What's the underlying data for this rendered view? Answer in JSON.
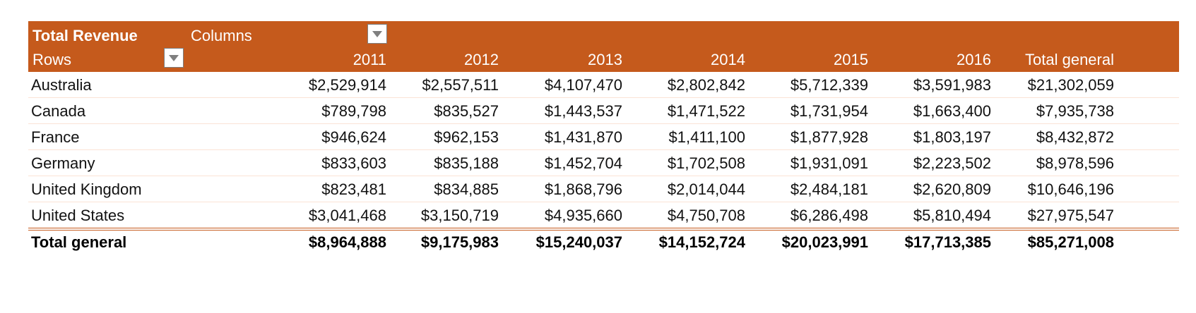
{
  "pivot": {
    "title": "Total Revenue",
    "columns_label": "Columns",
    "rows_label": "Rows",
    "colors": {
      "header_bg": "#c55a1c",
      "header_text": "#ffffff",
      "row_divider": "#fbe3d6",
      "total_border": "#c55a1c"
    },
    "column_headers": [
      "2011",
      "2012",
      "2013",
      "2014",
      "2015",
      "2016",
      "Total general"
    ],
    "rows": [
      {
        "label": "Australia",
        "values": [
          "$2,529,914",
          "$2,557,511",
          "$4,107,470",
          "$2,802,842",
          "$5,712,339",
          "$3,591,983",
          "$21,302,059"
        ]
      },
      {
        "label": "Canada",
        "values": [
          "$789,798",
          "$835,527",
          "$1,443,537",
          "$1,471,522",
          "$1,731,954",
          "$1,663,400",
          "$7,935,738"
        ]
      },
      {
        "label": "France",
        "values": [
          "$946,624",
          "$962,153",
          "$1,431,870",
          "$1,411,100",
          "$1,877,928",
          "$1,803,197",
          "$8,432,872"
        ]
      },
      {
        "label": "Germany",
        "values": [
          "$833,603",
          "$835,188",
          "$1,452,704",
          "$1,702,508",
          "$1,931,091",
          "$2,223,502",
          "$8,978,596"
        ]
      },
      {
        "label": "United Kingdom",
        "values": [
          "$823,481",
          "$834,885",
          "$1,868,796",
          "$2,014,044",
          "$2,484,181",
          "$2,620,809",
          "$10,646,196"
        ]
      },
      {
        "label": "United States",
        "values": [
          "$3,041,468",
          "$3,150,719",
          "$4,935,660",
          "$4,750,708",
          "$6,286,498",
          "$5,810,494",
          "$27,975,547"
        ]
      }
    ],
    "total": {
      "label": "Total general",
      "values": [
        "$8,964,888",
        "$9,175,983",
        "$15,240,037",
        "$14,152,724",
        "$20,023,991",
        "$17,713,385",
        "$85,271,008"
      ]
    },
    "icons": {
      "filter": "dropdown-filter-icon"
    }
  }
}
